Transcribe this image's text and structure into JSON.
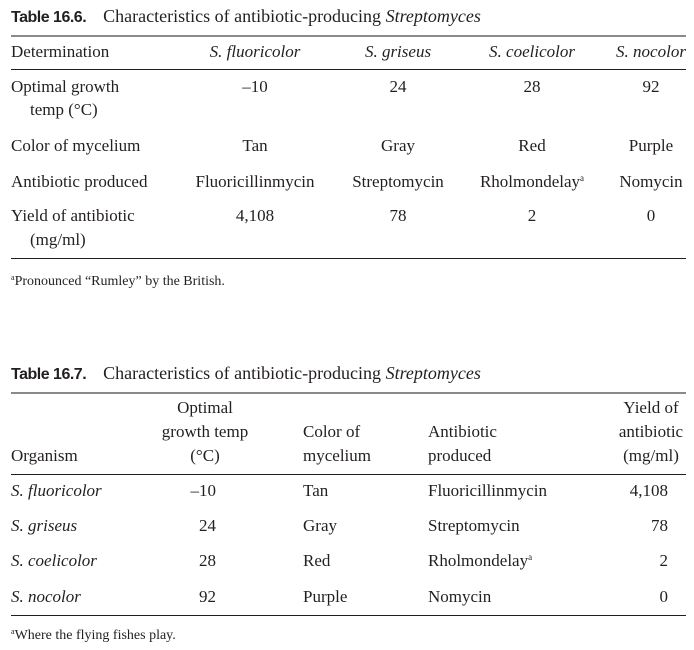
{
  "table_16_6": {
    "number": "Table 16.6.",
    "title": "Characteristics of antibiotic-producing ",
    "title_italic": "Streptomyces",
    "header": [
      "Determination",
      "S. fluoricolor",
      "S. griseus",
      "S. coelicolor",
      "S. nocolor"
    ],
    "rows": [
      {
        "label": [
          "Optimal growth",
          "temp (°C)"
        ],
        "values": [
          "–10",
          "24",
          "28",
          "92"
        ]
      },
      {
        "label": [
          "Color of mycelium"
        ],
        "values": [
          "Tan",
          "Gray",
          "Red",
          "Purple"
        ]
      },
      {
        "label": [
          "Antibiotic produced"
        ],
        "values": [
          "Fluoricillinmycin",
          "Streptomycin",
          "Rholmondelay",
          "Nomycin"
        ],
        "footnote_mark_col": 2
      },
      {
        "label": [
          "Yield of antibiotic",
          "(mg/ml)"
        ],
        "values": [
          "4,108",
          "78",
          "2",
          "0"
        ]
      }
    ],
    "footnote_mark": "a",
    "footnote": "Pronounced “Rumley” by the British."
  },
  "table_16_7": {
    "number": "Table 16.7.",
    "title": "Characteristics of antibiotic-producing ",
    "title_italic": "Streptomyces",
    "header": [
      [
        "Organism"
      ],
      [
        "Optimal",
        "growth temp",
        "(°C)"
      ],
      [
        "Color of",
        "mycelium"
      ],
      [
        "Antibiotic",
        "produced"
      ],
      [
        "Yield of",
        "antibiotic",
        "(mg/ml)"
      ]
    ],
    "rows": [
      [
        "S. fluoricolor",
        "–10",
        "Tan",
        "Fluoricillinmycin",
        "4,108"
      ],
      [
        "S. griseus",
        "24",
        "Gray",
        "Streptomycin",
        "78"
      ],
      [
        "S. coelicolor",
        "28",
        "Red",
        "Rholmondelay",
        "2"
      ],
      [
        "S. nocolor",
        "92",
        "Purple",
        "Nomycin",
        "0"
      ]
    ],
    "footnote_mark": "a",
    "footnote": "Where the flying fishes play."
  }
}
